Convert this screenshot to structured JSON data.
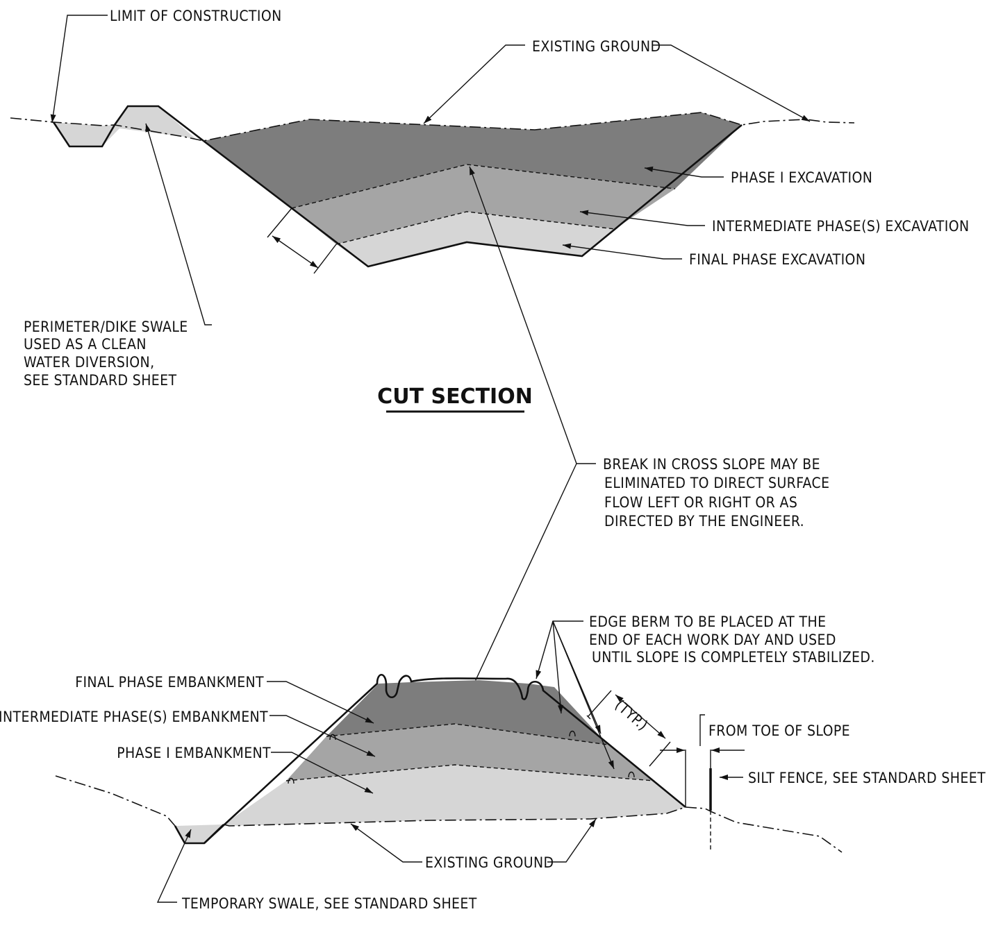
{
  "title": "CUT SECTION",
  "cut_section": {
    "limit_of_construction": "LIMIT OF CONSTRUCTION",
    "existing_ground": "EXISTING GROUND",
    "phase1_excavation": "PHASE I EXCAVATION",
    "intermediate_excavation": "INTERMEDIATE PHASE(S) EXCAVATION",
    "final_excavation": "FINAL PHASE EXCAVATION",
    "perimeter_swale": [
      "PERIMETER/DIKE SWALE",
      "USED AS A CLEAN",
      "WATER DIVERSION,",
      "SEE STANDARD SHEET"
    ]
  },
  "break_note": [
    "BREAK IN CROSS SLOPE MAY BE",
    "ELIMINATED TO DIRECT SURFACE",
    "FLOW LEFT OR RIGHT OR AS",
    "DIRECTED BY THE ENGINEER."
  ],
  "fill_section": {
    "edge_berm": [
      "EDGE BERM TO BE PLACED AT THE",
      "END OF EACH WORK DAY AND USED",
      "UNTIL SLOPE IS COMPLETELY STABILIZED."
    ],
    "final_embankment": "FINAL PHASE EMBANKMENT",
    "intermediate_embankment": "INTERMEDIATE PHASE(S) EMBANKMENT",
    "phase1_embankment": "PHASE I EMBANKMENT",
    "typ": "(TYP.)",
    "from_toe": "FROM TOE OF SLOPE",
    "silt_fence": "SILT FENCE, SEE STANDARD SHEET",
    "existing_ground": "EXISTING GROUND",
    "temporary_swale": "TEMPORARY SWALE, SEE STANDARD SHEET"
  },
  "colors": {
    "dark": "#7d7d7d",
    "medium": "#a5a5a5",
    "light": "#d6d6d6",
    "line": "#111111"
  }
}
